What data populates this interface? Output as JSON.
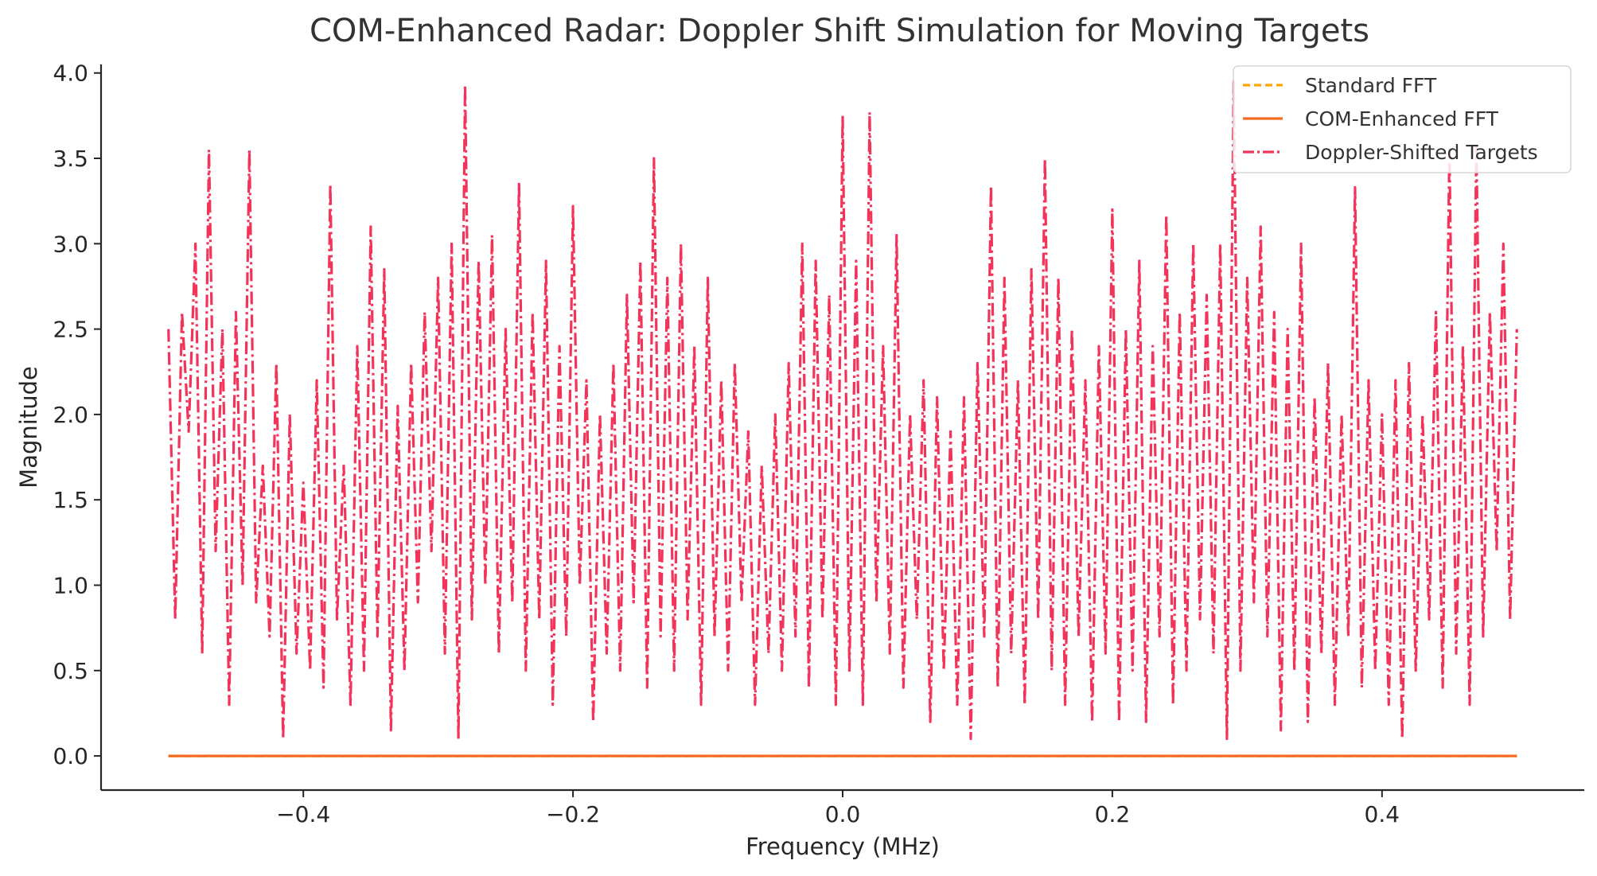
{
  "chart_data": {
    "type": "line",
    "title": "COM-Enhanced Radar: Doppler Shift Simulation for Moving Targets",
    "xlabel": "Frequency (MHz)",
    "ylabel": "Magnitude",
    "xlim": [
      -0.55,
      0.55
    ],
    "ylim": [
      -0.2,
      4.05
    ],
    "x_ticks": [
      -0.4,
      -0.2,
      0.0,
      0.2,
      0.4
    ],
    "x_tick_labels": [
      "−0.4",
      "−0.2",
      "0.0",
      "0.2",
      "0.4"
    ],
    "y_ticks": [
      0.0,
      0.5,
      1.0,
      1.5,
      2.0,
      2.5,
      3.0,
      3.5,
      4.0
    ],
    "y_tick_labels": [
      "0.0",
      "0.5",
      "1.0",
      "1.5",
      "2.0",
      "2.5",
      "3.0",
      "3.5",
      "4.0"
    ],
    "grid": false,
    "legend_position": "top-right",
    "series": [
      {
        "name": "Standard FFT",
        "color": "#ffa500",
        "style": "dashed",
        "x_range": [
          -0.5,
          0.5
        ],
        "constant_value": 0.0
      },
      {
        "name": "COM-Enhanced FFT",
        "color": "#f26b22",
        "style": "solid",
        "x_range": [
          -0.5,
          0.5
        ],
        "constant_value": 0.0
      },
      {
        "name": "Doppler-Shifted Targets",
        "color": "#f2345a",
        "style": "dashdot",
        "x_range": [
          -0.5,
          0.5
        ],
        "points": [
          [
            -0.5,
            2.5
          ],
          [
            -0.495,
            0.8
          ],
          [
            -0.49,
            2.6
          ],
          [
            -0.485,
            1.9
          ],
          [
            -0.48,
            3.0
          ],
          [
            -0.475,
            0.6
          ],
          [
            -0.47,
            3.55
          ],
          [
            -0.465,
            1.2
          ],
          [
            -0.46,
            2.5
          ],
          [
            -0.455,
            0.3
          ],
          [
            -0.45,
            2.6
          ],
          [
            -0.445,
            1.0
          ],
          [
            -0.44,
            3.55
          ],
          [
            -0.435,
            0.9
          ],
          [
            -0.43,
            1.7
          ],
          [
            -0.425,
            0.7
          ],
          [
            -0.42,
            2.3
          ],
          [
            -0.415,
            0.1
          ],
          [
            -0.41,
            2.0
          ],
          [
            -0.405,
            0.6
          ],
          [
            -0.4,
            1.6
          ],
          [
            -0.395,
            0.5
          ],
          [
            -0.39,
            2.2
          ],
          [
            -0.385,
            0.4
          ],
          [
            -0.38,
            3.35
          ],
          [
            -0.375,
            0.8
          ],
          [
            -0.37,
            1.7
          ],
          [
            -0.365,
            0.3
          ],
          [
            -0.36,
            2.4
          ],
          [
            -0.355,
            0.5
          ],
          [
            -0.35,
            3.1
          ],
          [
            -0.345,
            0.7
          ],
          [
            -0.34,
            2.85
          ],
          [
            -0.335,
            0.15
          ],
          [
            -0.33,
            2.05
          ],
          [
            -0.325,
            0.5
          ],
          [
            -0.32,
            2.3
          ],
          [
            -0.315,
            0.9
          ],
          [
            -0.31,
            2.6
          ],
          [
            -0.305,
            1.2
          ],
          [
            -0.3,
            2.8
          ],
          [
            -0.295,
            0.6
          ],
          [
            -0.29,
            3.0
          ],
          [
            -0.285,
            0.1
          ],
          [
            -0.28,
            3.93
          ],
          [
            -0.275,
            0.8
          ],
          [
            -0.27,
            2.9
          ],
          [
            -0.265,
            1.0
          ],
          [
            -0.26,
            3.05
          ],
          [
            -0.255,
            0.6
          ],
          [
            -0.25,
            2.5
          ],
          [
            -0.245,
            0.9
          ],
          [
            -0.24,
            3.35
          ],
          [
            -0.235,
            0.5
          ],
          [
            -0.23,
            2.6
          ],
          [
            -0.225,
            0.8
          ],
          [
            -0.22,
            2.9
          ],
          [
            -0.215,
            0.3
          ],
          [
            -0.21,
            2.4
          ],
          [
            -0.205,
            0.7
          ],
          [
            -0.2,
            3.22
          ],
          [
            -0.195,
            1.0
          ],
          [
            -0.19,
            2.2
          ],
          [
            -0.185,
            0.2
          ],
          [
            -0.18,
            2.0
          ],
          [
            -0.175,
            0.6
          ],
          [
            -0.17,
            2.3
          ],
          [
            -0.165,
            0.5
          ],
          [
            -0.16,
            2.7
          ],
          [
            -0.155,
            0.9
          ],
          [
            -0.15,
            2.9
          ],
          [
            -0.145,
            0.4
          ],
          [
            -0.14,
            3.5
          ],
          [
            -0.135,
            0.7
          ],
          [
            -0.13,
            2.8
          ],
          [
            -0.125,
            0.5
          ],
          [
            -0.12,
            3.0
          ],
          [
            -0.115,
            0.8
          ],
          [
            -0.11,
            2.4
          ],
          [
            -0.105,
            0.3
          ],
          [
            -0.1,
            2.8
          ],
          [
            -0.095,
            0.7
          ],
          [
            -0.09,
            2.2
          ],
          [
            -0.085,
            0.5
          ],
          [
            -0.08,
            2.3
          ],
          [
            -0.075,
            0.9
          ],
          [
            -0.07,
            1.9
          ],
          [
            -0.065,
            0.3
          ],
          [
            -0.06,
            1.7
          ],
          [
            -0.055,
            0.6
          ],
          [
            -0.05,
            2.0
          ],
          [
            -0.045,
            0.5
          ],
          [
            -0.04,
            2.3
          ],
          [
            -0.035,
            0.7
          ],
          [
            -0.03,
            3.0
          ],
          [
            -0.025,
            0.4
          ],
          [
            -0.02,
            2.9
          ],
          [
            -0.015,
            0.8
          ],
          [
            -0.01,
            2.7
          ],
          [
            -0.005,
            0.3
          ],
          [
            0.0,
            3.75
          ],
          [
            0.005,
            0.5
          ],
          [
            0.01,
            2.9
          ],
          [
            0.015,
            0.3
          ],
          [
            0.02,
            3.77
          ],
          [
            0.025,
            0.9
          ],
          [
            0.03,
            2.4
          ],
          [
            0.035,
            0.6
          ],
          [
            0.04,
            3.05
          ],
          [
            0.045,
            0.4
          ],
          [
            0.05,
            2.0
          ],
          [
            0.055,
            0.8
          ],
          [
            0.06,
            2.2
          ],
          [
            0.065,
            0.2
          ],
          [
            0.07,
            2.1
          ],
          [
            0.075,
            0.5
          ],
          [
            0.08,
            1.9
          ],
          [
            0.085,
            0.3
          ],
          [
            0.09,
            2.1
          ],
          [
            0.095,
            0.1
          ],
          [
            0.1,
            2.3
          ],
          [
            0.105,
            0.7
          ],
          [
            0.11,
            3.34
          ],
          [
            0.115,
            0.4
          ],
          [
            0.12,
            2.8
          ],
          [
            0.125,
            0.6
          ],
          [
            0.13,
            2.2
          ],
          [
            0.135,
            0.3
          ],
          [
            0.14,
            2.85
          ],
          [
            0.145,
            0.8
          ],
          [
            0.15,
            3.5
          ],
          [
            0.155,
            0.5
          ],
          [
            0.16,
            2.8
          ],
          [
            0.165,
            0.3
          ],
          [
            0.17,
            2.5
          ],
          [
            0.175,
            0.7
          ],
          [
            0.18,
            2.2
          ],
          [
            0.185,
            0.2
          ],
          [
            0.19,
            2.4
          ],
          [
            0.195,
            0.6
          ],
          [
            0.2,
            3.2
          ],
          [
            0.205,
            0.2
          ],
          [
            0.21,
            2.5
          ],
          [
            0.215,
            0.5
          ],
          [
            0.22,
            2.9
          ],
          [
            0.225,
            0.2
          ],
          [
            0.23,
            2.4
          ],
          [
            0.235,
            0.7
          ],
          [
            0.24,
            3.17
          ],
          [
            0.245,
            0.3
          ],
          [
            0.25,
            2.6
          ],
          [
            0.255,
            0.5
          ],
          [
            0.26,
            3.0
          ],
          [
            0.265,
            0.8
          ],
          [
            0.27,
            2.7
          ],
          [
            0.275,
            0.6
          ],
          [
            0.28,
            3.0
          ],
          [
            0.285,
            0.1
          ],
          [
            0.29,
            3.95
          ],
          [
            0.295,
            0.5
          ],
          [
            0.3,
            2.8
          ],
          [
            0.305,
            0.9
          ],
          [
            0.31,
            3.1
          ],
          [
            0.315,
            0.7
          ],
          [
            0.32,
            2.6
          ],
          [
            0.325,
            0.15
          ],
          [
            0.33,
            2.5
          ],
          [
            0.335,
            0.5
          ],
          [
            0.34,
            3.0
          ],
          [
            0.345,
            0.2
          ],
          [
            0.35,
            2.1
          ],
          [
            0.355,
            0.6
          ],
          [
            0.36,
            2.3
          ],
          [
            0.365,
            0.3
          ],
          [
            0.37,
            2.0
          ],
          [
            0.375,
            0.7
          ],
          [
            0.38,
            3.33
          ],
          [
            0.385,
            0.4
          ],
          [
            0.39,
            2.2
          ],
          [
            0.395,
            0.5
          ],
          [
            0.4,
            2.0
          ],
          [
            0.405,
            0.3
          ],
          [
            0.41,
            2.2
          ],
          [
            0.415,
            0.1
          ],
          [
            0.42,
            2.3
          ],
          [
            0.425,
            0.5
          ],
          [
            0.43,
            2.0
          ],
          [
            0.435,
            0.8
          ],
          [
            0.44,
            2.6
          ],
          [
            0.445,
            0.4
          ],
          [
            0.45,
            3.55
          ],
          [
            0.455,
            0.6
          ],
          [
            0.46,
            2.4
          ],
          [
            0.465,
            0.3
          ],
          [
            0.47,
            3.57
          ],
          [
            0.475,
            0.7
          ],
          [
            0.48,
            2.6
          ],
          [
            0.485,
            1.2
          ],
          [
            0.49,
            3.0
          ],
          [
            0.495,
            0.8
          ],
          [
            0.5,
            2.5
          ]
        ]
      }
    ]
  }
}
